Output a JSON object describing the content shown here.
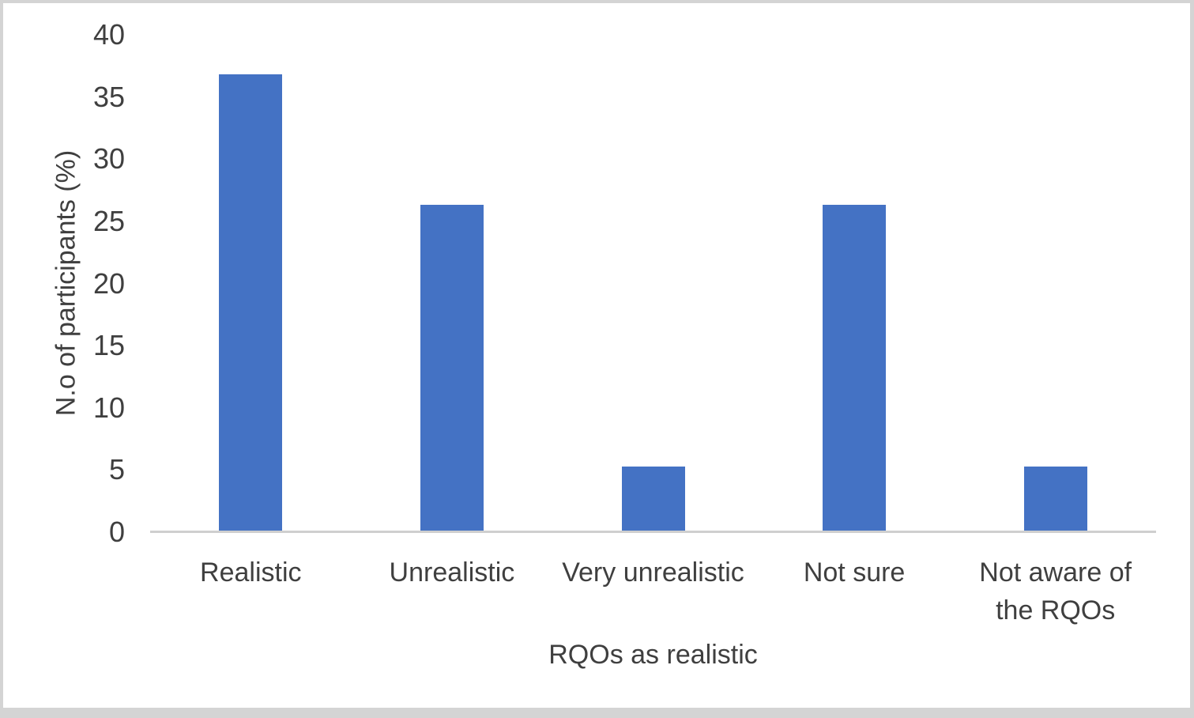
{
  "chart_data": {
    "type": "bar",
    "title": "",
    "categories": [
      "Realistic",
      "Unrealistic",
      "Very unrealistic",
      "Not sure",
      "Not aware of\nthe RQOs"
    ],
    "values": [
      36.8,
      26.3,
      5.3,
      26.3,
      5.3
    ],
    "xlabel": "RQOs as realistic",
    "ylabel": "N.o of participants (%)",
    "ylim": [
      0,
      40
    ],
    "yticks": [
      0,
      5,
      10,
      15,
      20,
      25,
      30,
      35,
      40
    ],
    "grid": false,
    "legend": "none",
    "bar_color": "#4472C4",
    "axis_line_color": "#cfcfcf",
    "text_color": "#3f3f3f",
    "background_color": "#ffffff",
    "frame_color": "#d4d4d4"
  }
}
